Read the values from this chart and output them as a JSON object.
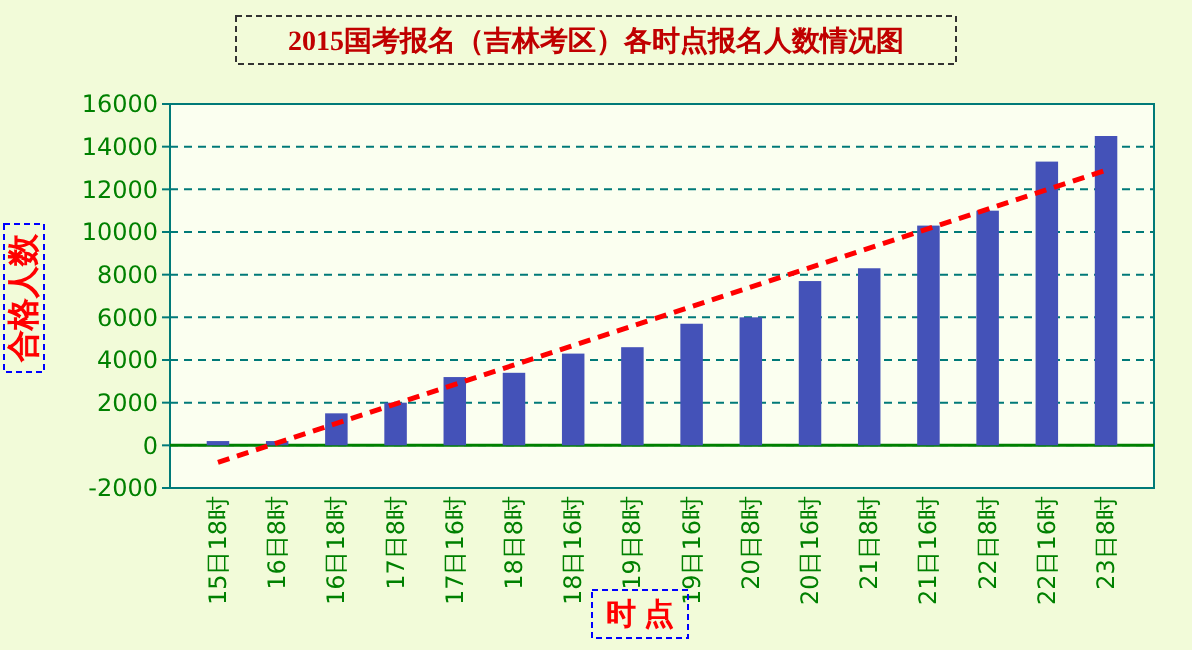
{
  "chart_data": {
    "type": "bar",
    "title": "2015国考报名（吉林考区）各时点报名人数情况图",
    "xlabel": "时 点",
    "ylabel": "合格人数",
    "categories": [
      "15日18时",
      "16日8时",
      "16日18时",
      "17日8时",
      "17日16时",
      "18日8时",
      "18日16时",
      "19日8时",
      "19日16时",
      "20日8时",
      "20日16时",
      "21日8时",
      "21日16时",
      "22日8时",
      "22日16时",
      "23日8时"
    ],
    "series": [
      {
        "color": "#4452b8",
        "values": [
          200,
          200,
          1500,
          2000,
          3200,
          3400,
          4300,
          4600,
          5700,
          6000,
          7700,
          8300,
          10300,
          11000,
          13300,
          14500
        ]
      },
      {
        "type": "line",
        "color": "#ff0000",
        "line_style": "dashed",
        "x": [
          "15日18时",
          "23日8时"
        ],
        "values": [
          -800,
          12900
        ]
      }
    ],
    "ylim": [
      -2000,
      16000
    ],
    "yticks": [
      -2000,
      0,
      2000,
      4000,
      6000,
      8000,
      10000,
      12000,
      14000,
      16000
    ],
    "grid": "y",
    "ref_lines": [
      {
        "axis": "y",
        "value": 0,
        "color": "#008000"
      }
    ]
  }
}
